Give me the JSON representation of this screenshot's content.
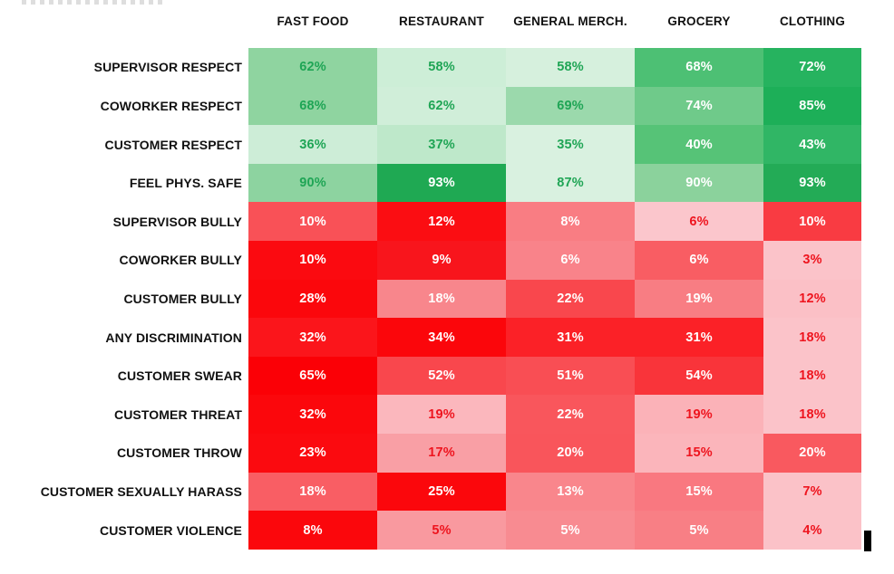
{
  "chart_data": {
    "type": "heatmap",
    "unit": "percent",
    "title": "",
    "columns": [
      "FAST FOOD",
      "RESTAURANT",
      "GENERAL MERCH.",
      "GROCERY",
      "CLOTHING"
    ],
    "palette": {
      "text_green": "#1fa555",
      "text_red": "#ee141e",
      "text_white": "#ffffff",
      "header_text": "#111111",
      "cursor": "#000000"
    },
    "layout": {
      "legend": "none",
      "grid": "off",
      "color_note": "green rows = positive metrics, red rows = negative metrics, shade intensity normalized per row"
    },
    "rows": [
      {
        "label": "SUPERVISOR RESPECT",
        "values": [
          62,
          58,
          58,
          68,
          72
        ],
        "cell_bg": [
          "#8fd4a0",
          "#cdeed7",
          "#d6f0dd",
          "#4dc074",
          "#26b35f"
        ],
        "cell_fg": [
          "green",
          "green",
          "green",
          "white",
          "white"
        ]
      },
      {
        "label": "COWORKER RESPECT",
        "values": [
          68,
          62,
          69,
          74,
          85
        ],
        "cell_bg": [
          "#8fd4a0",
          "#d0eed9",
          "#9bd9ac",
          "#6fca8a",
          "#1daf58"
        ],
        "cell_fg": [
          "green",
          "green",
          "green",
          "white",
          "white"
        ]
      },
      {
        "label": "CUSTOMER RESPECT",
        "values": [
          36,
          37,
          35,
          40,
          43
        ],
        "cell_bg": [
          "#cdedd7",
          "#bee8ca",
          "#d9f1e0",
          "#56c377",
          "#30b665"
        ],
        "cell_fg": [
          "green",
          "green",
          "green",
          "white",
          "white"
        ]
      },
      {
        "label": "FEEL PHYS. SAFE",
        "values": [
          90,
          93,
          87,
          90,
          93
        ],
        "cell_bg": [
          "#8dd3a0",
          "#1fa953",
          "#d9f1e0",
          "#8bd29c",
          "#23ab56"
        ],
        "cell_fg": [
          "green",
          "white",
          "green",
          "white",
          "white"
        ]
      },
      {
        "label": "SUPERVISOR BULLY",
        "values": [
          10,
          12,
          8,
          6,
          10
        ],
        "cell_bg": [
          "#f95157",
          "#fb0d12",
          "#f97d83",
          "#fbc6cc",
          "#f93b42"
        ],
        "cell_fg": [
          "white",
          "white",
          "white",
          "red",
          "white"
        ]
      },
      {
        "label": "COWORKER BULLY",
        "values": [
          10,
          9,
          6,
          6,
          3
        ],
        "cell_bg": [
          "#fb0a10",
          "#f8151c",
          "#f9838a",
          "#f95d63",
          "#fbc3c9"
        ],
        "cell_fg": [
          "white",
          "white",
          "white",
          "white",
          "red"
        ]
      },
      {
        "label": "CUSTOMER BULLY",
        "values": [
          28,
          18,
          22,
          19,
          12
        ],
        "cell_bg": [
          "#fb070c",
          "#f8868c",
          "#f9474d",
          "#f87d83",
          "#fbc0c6"
        ],
        "cell_fg": [
          "white",
          "white",
          "white",
          "white",
          "red"
        ]
      },
      {
        "label": "ANY DISCRIMINATION",
        "values": [
          32,
          34,
          31,
          31,
          18
        ],
        "cell_bg": [
          "#fb151b",
          "#fb060b",
          "#fb2127",
          "#fb2127",
          "#fbc3c9"
        ],
        "cell_fg": [
          "white",
          "white",
          "white",
          "white",
          "red"
        ]
      },
      {
        "label": "CUSTOMER SWEAR",
        "values": [
          65,
          52,
          51,
          54,
          18
        ],
        "cell_bg": [
          "#fb0006",
          "#f9474d",
          "#f94e54",
          "#f9343a",
          "#fbc3c9"
        ],
        "cell_fg": [
          "white",
          "white",
          "white",
          "white",
          "red"
        ]
      },
      {
        "label": "CUSTOMER THREAT",
        "values": [
          32,
          19,
          22,
          19,
          18
        ],
        "cell_bg": [
          "#fb070c",
          "#fbb7bd",
          "#f9565c",
          "#fbb2b8",
          "#fbc3c9"
        ],
        "cell_fg": [
          "white",
          "red",
          "white",
          "red",
          "red"
        ]
      },
      {
        "label": "CUSTOMER THROW",
        "values": [
          23,
          17,
          20,
          15,
          20
        ],
        "cell_bg": [
          "#fb0a0f",
          "#f99fa5",
          "#f9555b",
          "#fbb5bb",
          "#f9595f"
        ],
        "cell_fg": [
          "white",
          "red",
          "white",
          "red",
          "white"
        ]
      },
      {
        "label": "CUSTOMER SEXUALLY HARASS",
        "values": [
          18,
          25,
          13,
          15,
          7
        ],
        "cell_bg": [
          "#f95e64",
          "#fb070c",
          "#f9868c",
          "#f97880",
          "#fbc2c8"
        ],
        "cell_fg": [
          "white",
          "white",
          "white",
          "white",
          "red"
        ]
      },
      {
        "label": "CUSTOMER VIOLENCE",
        "values": [
          8,
          5,
          5,
          5,
          4
        ],
        "cell_bg": [
          "#fb070c",
          "#f9999f",
          "#f88b91",
          "#f87f85",
          "#fbc2c8"
        ],
        "cell_fg": [
          "white",
          "red",
          "white",
          "white",
          "red"
        ]
      }
    ]
  }
}
